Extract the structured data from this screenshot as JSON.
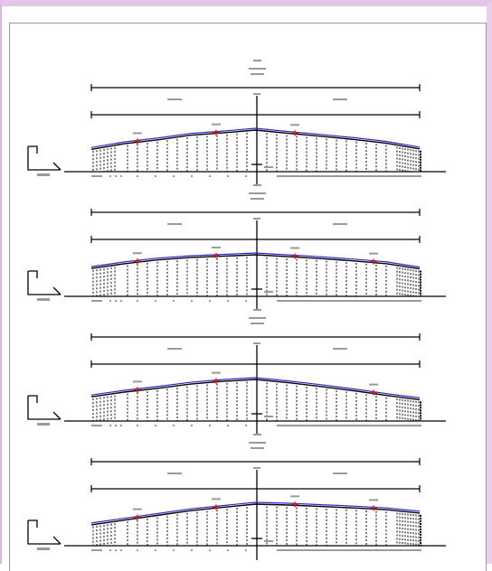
{
  "colors": {
    "frame": "#e3c6e8",
    "line": "#000000",
    "profile_blue": "#2a2ad0",
    "mark_red": "#d02020",
    "gray_text": "#9a9a9a"
  },
  "icons": [
    "corner-bracket-icon"
  ],
  "panels": [
    {
      "profile": [
        0.18,
        0.42,
        0.58,
        0.78,
        0.88,
        1.0,
        0.86,
        0.74,
        0.6,
        0.44,
        0.2
      ],
      "markers": [
        0.14,
        0.38,
        0.62
      ]
    },
    {
      "profile": [
        0.42,
        0.62,
        0.78,
        0.88,
        0.94,
        1.0,
        0.92,
        0.84,
        0.74,
        0.62,
        0.4
      ],
      "markers": [
        0.14,
        0.38,
        0.62,
        0.86
      ]
    },
    {
      "profile": [
        0.26,
        0.46,
        0.62,
        0.8,
        0.92,
        1.0,
        0.86,
        0.7,
        0.52,
        0.32,
        0.14
      ],
      "markers": [
        0.14,
        0.38,
        0.86
      ]
    },
    {
      "profile": [
        0.12,
        0.32,
        0.52,
        0.72,
        0.86,
        1.0,
        0.96,
        0.9,
        0.84,
        0.76,
        0.62
      ],
      "markers": [
        0.14,
        0.38,
        0.62,
        0.86
      ]
    }
  ]
}
